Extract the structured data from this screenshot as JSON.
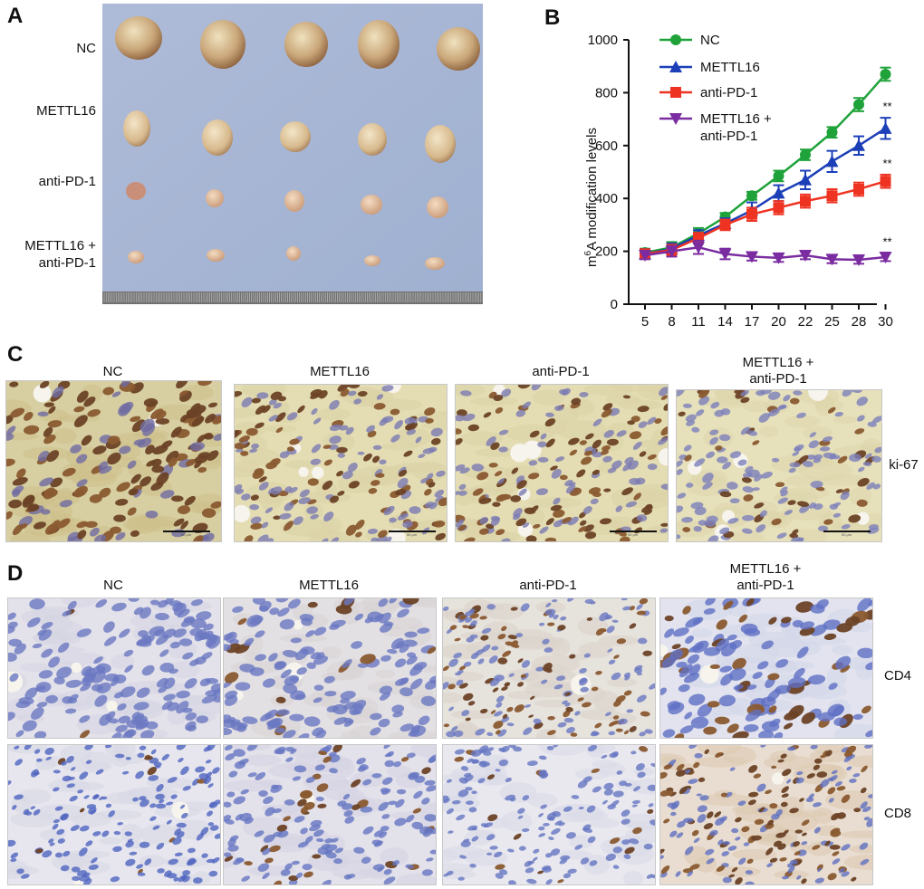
{
  "panels": {
    "a": "A",
    "b": "B",
    "c": "C",
    "d": "D"
  },
  "panel_a": {
    "row_labels": [
      "NC",
      "METTL16",
      "anti-PD-1",
      "METTL16 +",
      "anti-PD-1"
    ],
    "tumor_count_per_row": 5
  },
  "chart_data": {
    "type": "line",
    "title": "",
    "ylabel": "m6A modification levels",
    "ylabel_parts": {
      "pre": "m",
      "sup": "6",
      "post": "A modification levels"
    },
    "xlabel": "",
    "categories": [
      "5",
      "8",
      "11",
      "14",
      "17",
      "20",
      "22",
      "25",
      "28",
      "30"
    ],
    "ylim": [
      0,
      1000
    ],
    "yticks": [
      0,
      200,
      400,
      600,
      800,
      1000
    ],
    "series": [
      {
        "name": "NC",
        "color": "#1fa23a",
        "marker": "circle",
        "values": [
          195,
          215,
          268,
          330,
          410,
          485,
          565,
          650,
          755,
          870
        ],
        "errors": [
          15,
          20,
          20,
          15,
          15,
          20,
          20,
          20,
          25,
          25
        ]
      },
      {
        "name": "METTL16",
        "color": "#1c3fb8",
        "marker": "triangle-up",
        "values": [
          190,
          210,
          260,
          305,
          355,
          420,
          470,
          540,
          600,
          665
        ],
        "errors": [
          18,
          20,
          20,
          20,
          30,
          30,
          35,
          40,
          35,
          40
        ]
      },
      {
        "name": "anti-PD-1",
        "color": "#ee3322",
        "marker": "square",
        "values": [
          190,
          205,
          250,
          300,
          340,
          365,
          390,
          410,
          435,
          465
        ],
        "errors": [
          18,
          20,
          20,
          20,
          25,
          25,
          25,
          25,
          25,
          25
        ]
      },
      {
        "name": "METTL16 + anti-PD-1",
        "color": "#7a2ca0",
        "marker": "triangle-down",
        "values": [
          185,
          200,
          215,
          190,
          180,
          175,
          185,
          170,
          168,
          178
        ],
        "errors": [
          15,
          20,
          25,
          20,
          15,
          15,
          15,
          15,
          15,
          15
        ]
      }
    ],
    "legend": {
      "position": "top-right",
      "labels": [
        "NC",
        "METTL16",
        "anti-PD-1",
        "METTL16 +",
        "anti-PD-1"
      ]
    },
    "annotations": [
      "**",
      "**",
      "**"
    ]
  },
  "panel_c": {
    "titles": [
      "NC",
      "METTL16",
      "anti-PD-1",
      "METTL16 +",
      "anti-PD-1"
    ],
    "row_label": "ki-67",
    "scale_text": "50 μm"
  },
  "panel_d": {
    "titles": [
      "NC",
      "METTL16",
      "anti-PD-1",
      "METTL16 +",
      "anti-PD-1"
    ],
    "row_labels": [
      "CD4",
      "CD8"
    ]
  },
  "colors": {
    "photo_bg": "#a9b8d6",
    "tissue_bg": "#e9e7dd",
    "nucleus_brown": "#6e4a2a",
    "nucleus_blue": "#6a78c2",
    "tumor": "#d8c39a"
  }
}
